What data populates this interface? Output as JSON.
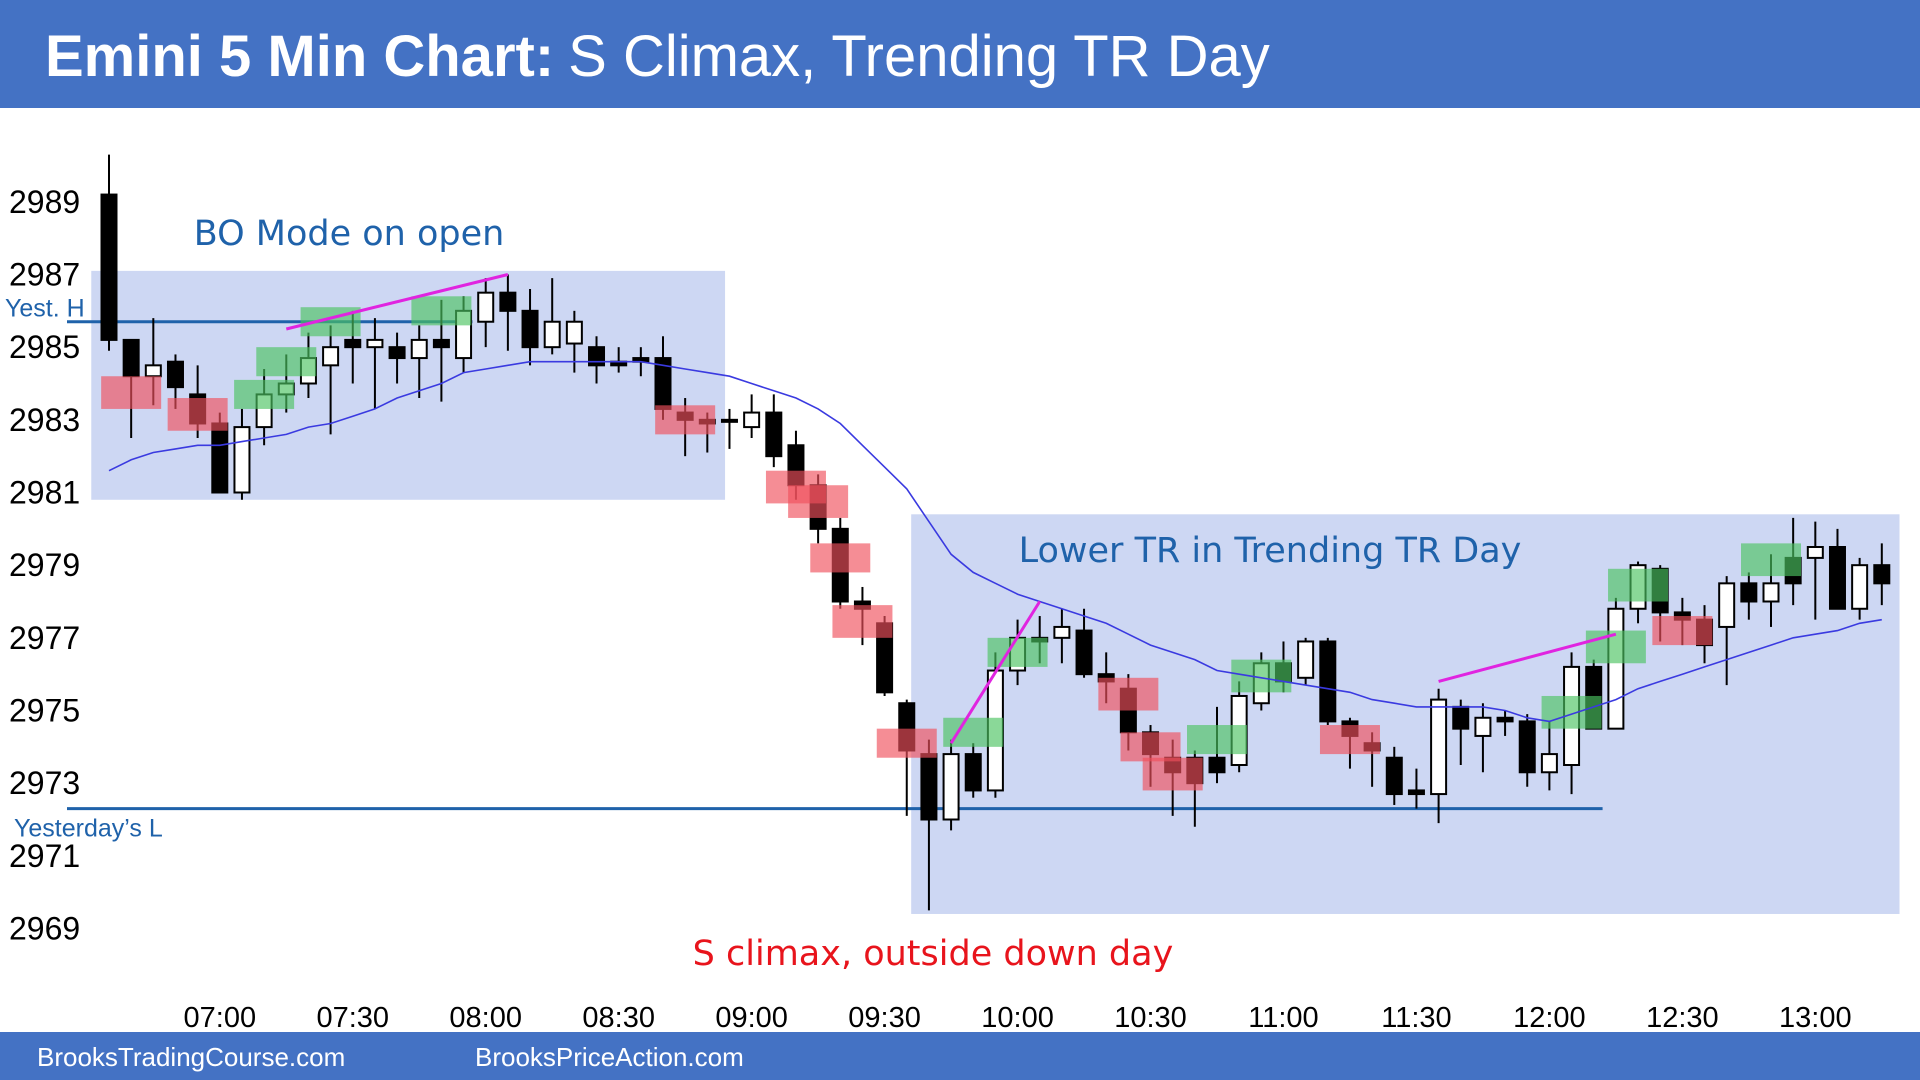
{
  "chart_data": {
    "type": "candlestick",
    "title": "Emini 5 Min Chart:",
    "subtitle": "S Climax, Trending TR Day",
    "footer_left": "BrooksTradingCourse.com",
    "footer_right": "BrooksPriceAction.com",
    "annotations": [
      "BO Mode on open",
      "Lower TR in Trending TR Day",
      "S climax, outside down day"
    ],
    "x": [
      "06:35",
      "06:40",
      "06:45",
      "06:50",
      "06:55",
      "07:00",
      "07:05",
      "07:10",
      "07:15",
      "07:20",
      "07:25",
      "07:30",
      "07:35",
      "07:40",
      "07:45",
      "07:50",
      "07:55",
      "08:00",
      "08:05",
      "08:10",
      "08:15",
      "08:20",
      "08:25",
      "08:30",
      "08:35",
      "08:40",
      "08:45",
      "08:50",
      "08:55",
      "09:00",
      "09:05",
      "09:10",
      "09:15",
      "09:20",
      "09:25",
      "09:30",
      "09:35",
      "09:40",
      "09:45",
      "09:50",
      "09:55",
      "10:00",
      "10:05",
      "10:10",
      "10:15",
      "10:20",
      "10:25",
      "10:30",
      "10:35",
      "10:40",
      "10:45",
      "10:50",
      "10:55",
      "11:00",
      "11:05",
      "11:10",
      "11:15",
      "11:20",
      "11:25",
      "11:30",
      "11:35",
      "11:40",
      "11:45",
      "11:50",
      "11:55",
      "12:00",
      "12:05",
      "12:10",
      "12:15",
      "12:20",
      "12:25",
      "12:30",
      "12:35",
      "12:40",
      "12:45",
      "12:50",
      "12:55",
      "13:00",
      "13:05",
      "13:10",
      "13:15"
    ],
    "open": [
      2989.2,
      2985.2,
      2984.2,
      2984.6,
      2983.7,
      2982.9,
      2981.0,
      2982.8,
      2983.7,
      2984.0,
      2984.5,
      2985.2,
      2985.0,
      2985.0,
      2984.7,
      2985.2,
      2984.7,
      2985.7,
      2986.5,
      2986.0,
      2985.0,
      2985.1,
      2985.0,
      2984.6,
      2984.7,
      2984.7,
      2983.2,
      2983.0,
      2983.0,
      2982.8,
      2983.2,
      2982.3,
      2981.2,
      2980.0,
      2978.0,
      2977.4,
      2975.2,
      2973.8,
      2972.0,
      2973.8,
      2972.8,
      2976.1,
      2977.0,
      2977.0,
      2977.2,
      2976.0,
      2975.6,
      2974.4,
      2973.7,
      2973.7,
      2973.7,
      2973.5,
      2975.2,
      2976.3,
      2975.9,
      2976.9,
      2974.7,
      2974.1,
      2973.7,
      2972.8,
      2972.7,
      2975.1,
      2974.3,
      2974.8,
      2974.7,
      2973.3,
      2973.5,
      2976.2,
      2974.5,
      2977.8,
      2978.9,
      2977.7,
      2977.5,
      2977.3,
      2978.5,
      2978.0,
      2979.2,
      2979.2,
      2979.5,
      2977.8,
      2979.0
    ],
    "high": [
      2990.3,
      2985.2,
      2985.8,
      2984.8,
      2984.5,
      2983.2,
      2983.3,
      2984.4,
      2984.8,
      2985.4,
      2985.6,
      2986.0,
      2985.8,
      2985.4,
      2985.6,
      2986.3,
      2986.4,
      2986.9,
      2987.0,
      2986.6,
      2986.9,
      2986.0,
      2985.3,
      2985.0,
      2985.0,
      2985.3,
      2983.6,
      2983.2,
      2983.3,
      2983.7,
      2983.7,
      2982.7,
      2981.5,
      2980.3,
      2978.4,
      2977.6,
      2975.3,
      2974.2,
      2974.2,
      2974.1,
      2976.6,
      2977.5,
      2977.6,
      2977.8,
      2977.8,
      2976.6,
      2976.0,
      2974.6,
      2974.2,
      2973.9,
      2975.1,
      2975.8,
      2976.6,
      2976.9,
      2977.0,
      2977.0,
      2974.8,
      2974.4,
      2974.0,
      2973.4,
      2975.6,
      2975.3,
      2975.2,
      2975.0,
      2974.9,
      2974.7,
      2976.6,
      2976.4,
      2978.1,
      2979.1,
      2979.0,
      2978.1,
      2977.9,
      2978.7,
      2978.8,
      2979.3,
      2980.3,
      2980.2,
      2980.0,
      2979.2,
      2979.6
    ],
    "low": [
      2984.9,
      2982.5,
      2983.4,
      2983.3,
      2982.5,
      2981.0,
      2980.8,
      2982.3,
      2983.2,
      2983.6,
      2982.6,
      2984.0,
      2983.3,
      2984.0,
      2983.6,
      2983.5,
      2984.3,
      2985.0,
      2984.9,
      2984.5,
      2984.8,
      2984.3,
      2984.0,
      2984.3,
      2984.2,
      2983.0,
      2982.0,
      2982.1,
      2982.2,
      2982.5,
      2981.7,
      2980.8,
      2979.6,
      2977.8,
      2976.8,
      2975.4,
      2972.1,
      2969.5,
      2971.7,
      2972.6,
      2972.6,
      2975.7,
      2976.3,
      2976.3,
      2975.9,
      2975.2,
      2973.9,
      2972.9,
      2972.1,
      2971.8,
      2973.0,
      2973.3,
      2975.0,
      2975.5,
      2975.7,
      2974.6,
      2973.4,
      2972.9,
      2972.4,
      2972.3,
      2971.9,
      2973.5,
      2973.3,
      2974.3,
      2972.9,
      2972.8,
      2972.7,
      2974.5,
      2974.5,
      2977.4,
      2976.9,
      2976.8,
      2976.3,
      2975.7,
      2977.5,
      2977.3,
      2977.9,
      2977.5,
      2977.8,
      2977.5,
      2977.9
    ],
    "close": [
      2985.2,
      2984.2,
      2984.5,
      2983.9,
      2982.9,
      2981.0,
      2982.8,
      2983.7,
      2984.0,
      2984.7,
      2985.0,
      2985.0,
      2985.2,
      2984.7,
      2985.2,
      2985.0,
      2986.0,
      2986.5,
      2986.0,
      2985.0,
      2985.7,
      2985.7,
      2984.5,
      2984.5,
      2984.6,
      2983.3,
      2983.0,
      2982.9,
      2982.95,
      2983.2,
      2982.0,
      2981.2,
      2980.0,
      2978.0,
      2977.8,
      2975.5,
      2973.9,
      2972.0,
      2973.8,
      2972.8,
      2976.1,
      2977.0,
      2976.9,
      2977.3,
      2976.0,
      2975.8,
      2974.4,
      2973.8,
      2973.3,
      2973.0,
      2973.3,
      2975.4,
      2976.3,
      2975.8,
      2976.9,
      2974.7,
      2974.3,
      2973.9,
      2972.7,
      2972.7,
      2975.3,
      2974.5,
      2974.8,
      2974.7,
      2973.3,
      2973.8,
      2976.2,
      2974.5,
      2977.8,
      2979.0,
      2977.7,
      2977.5,
      2976.8,
      2978.5,
      2978.0,
      2978.5,
      2978.5,
      2979.5,
      2977.8,
      2979.0,
      2978.5
    ],
    "up_color": "#ffffff",
    "down_color": "#000000",
    "ema": [
      2981.6,
      2981.9,
      2982.1,
      2982.2,
      2982.3,
      2982.3,
      2982.4,
      2982.5,
      2982.6,
      2982.8,
      2982.9,
      2983.1,
      2983.3,
      2983.6,
      2983.8,
      2984.0,
      2984.3,
      2984.4,
      2984.5,
      2984.6,
      2984.6,
      2984.6,
      2984.6,
      2984.6,
      2984.6,
      2984.5,
      2984.4,
      2984.3,
      2984.2,
      2984.0,
      2983.8,
      2983.6,
      2983.3,
      2982.9,
      2982.3,
      2981.7,
      2981.1,
      2980.2,
      2979.3,
      2978.8,
      2978.5,
      2978.2,
      2978.0,
      2977.8,
      2977.6,
      2977.4,
      2977.1,
      2976.8,
      2976.6,
      2976.4,
      2976.1,
      2976.0,
      2975.9,
      2975.8,
      2975.7,
      2975.6,
      2975.5,
      2975.3,
      2975.2,
      2975.1,
      2975.1,
      2975.1,
      2975.1,
      2975.0,
      2974.8,
      2974.7,
      2974.9,
      2975.1,
      2975.3,
      2975.6,
      2975.8,
      2976.0,
      2976.2,
      2976.4,
      2976.6,
      2976.8,
      2977.0,
      2977.1,
      2977.2,
      2977.4,
      2977.5
    ],
    "ema_color": "#3a3ae0",
    "ranges": [
      {
        "start": "06:35",
        "end": "08:50",
        "high": 2987.1,
        "low": 2980.8
      },
      {
        "start": "09:40",
        "end": "13:15",
        "high": 2980.4,
        "low": 2969.4
      }
    ],
    "range_color": "#cdd7f3",
    "levels": [
      {
        "label": "Yest. H",
        "value": 2985.7,
        "end": "07:55"
      },
      {
        "label": "Yesterday’s L",
        "value": 2972.3,
        "end": "12:10"
      }
    ],
    "level_color": "#1f62aa",
    "trend_lines": [
      {
        "x": [
          "07:15",
          "08:05"
        ],
        "y": [
          2985.5,
          2987.0
        ]
      },
      {
        "x": [
          "09:45",
          "10:05"
        ],
        "y": [
          2974.1,
          2978.0
        ]
      },
      {
        "x": [
          "11:35",
          "12:15"
        ],
        "y": [
          2975.8,
          2977.1
        ]
      }
    ],
    "trend_color": "#e024e0",
    "buy_highlights": [
      {
        "x": "07:10",
        "high": 2984.1,
        "low": 2983.3
      },
      {
        "x": "07:15",
        "high": 2985.0,
        "low": 2984.2
      },
      {
        "x": "07:25",
        "high": 2986.1,
        "low": 2985.3
      },
      {
        "x": "07:50",
        "high": 2986.4,
        "low": 2985.6
      },
      {
        "x": "09:50",
        "high": 2974.8,
        "low": 2974.0
      },
      {
        "x": "10:00",
        "high": 2977.0,
        "low": 2976.2
      },
      {
        "x": "10:45",
        "high": 2974.6,
        "low": 2973.8
      },
      {
        "x": "10:55",
        "high": 2976.4,
        "low": 2975.5
      },
      {
        "x": "12:05",
        "high": 2975.4,
        "low": 2974.5
      },
      {
        "x": "12:15",
        "high": 2977.2,
        "low": 2976.3
      },
      {
        "x": "12:20",
        "high": 2978.9,
        "low": 2978.0
      },
      {
        "x": "12:50",
        "high": 2979.6,
        "low": 2978.7
      }
    ],
    "buy_color": "#4cc361",
    "sell_highlights": [
      {
        "x": "06:40",
        "high": 2984.2,
        "low": 2983.3
      },
      {
        "x": "06:55",
        "high": 2983.6,
        "low": 2982.7
      },
      {
        "x": "08:45",
        "high": 2983.4,
        "low": 2982.6
      },
      {
        "x": "09:10",
        "high": 2981.6,
        "low": 2980.7
      },
      {
        "x": "09:15",
        "high": 2981.2,
        "low": 2980.3
      },
      {
        "x": "09:20",
        "high": 2979.6,
        "low": 2978.8
      },
      {
        "x": "09:25",
        "high": 2977.9,
        "low": 2977.0
      },
      {
        "x": "09:35",
        "high": 2974.5,
        "low": 2973.7
      },
      {
        "x": "10:25",
        "high": 2975.9,
        "low": 2975.0
      },
      {
        "x": "10:30",
        "high": 2974.4,
        "low": 2973.6
      },
      {
        "x": "10:35",
        "high": 2973.7,
        "low": 2972.8
      },
      {
        "x": "11:15",
        "high": 2974.6,
        "low": 2973.8
      },
      {
        "x": "12:30",
        "high": 2977.6,
        "low": 2976.8
      }
    ],
    "sell_color": "#f0505c",
    "ylim": [
      2967.5,
      2991.5
    ],
    "yticks": [
      2969,
      2971,
      2973,
      2975,
      2977,
      2979,
      2981,
      2983,
      2985,
      2987,
      2989
    ],
    "xticks": [
      "07:00",
      "07:30",
      "08:00",
      "08:30",
      "09:00",
      "09:30",
      "10:00",
      "10:30",
      "11:00",
      "11:30",
      "12:00",
      "12:30",
      "13:00"
    ],
    "grid": false
  }
}
